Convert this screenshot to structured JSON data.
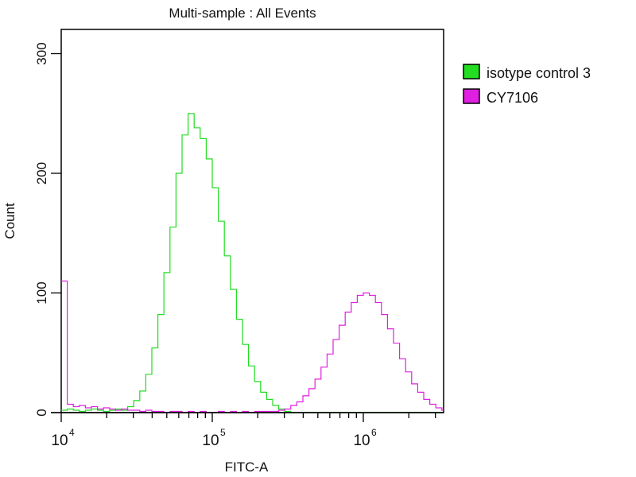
{
  "chart_data": {
    "type": "line",
    "title": "Multi-sample : All Events",
    "xlabel": "FITC-A",
    "ylabel": "Count",
    "x_scale": "log10",
    "xlim": [
      10000,
      3400000
    ],
    "ylim": [
      0,
      320
    ],
    "grid": false,
    "legend_position": "right",
    "x_ticks": [
      {
        "value": 10000,
        "base": "10",
        "exp": "4"
      },
      {
        "value": 100000,
        "base": "10",
        "exp": "5"
      },
      {
        "value": 1000000,
        "base": "10",
        "exp": "6"
      }
    ],
    "y_ticks": [
      {
        "value": 0,
        "label": "0"
      },
      {
        "value": 100,
        "label": "100"
      },
      {
        "value": 200,
        "label": "200"
      },
      {
        "value": 300,
        "label": "300"
      }
    ],
    "bins_log10_start": 4.0,
    "bins_log10_width": 0.04,
    "series": [
      {
        "name": "isotype control 3",
        "color": "#22dd22",
        "values": [
          2,
          3,
          2,
          1,
          2,
          3,
          2,
          1,
          2,
          3,
          2,
          5,
          10,
          18,
          32,
          54,
          82,
          117,
          155,
          200,
          232,
          250,
          238,
          229,
          212,
          188,
          160,
          131,
          103,
          78,
          57,
          39,
          26,
          17,
          11,
          6,
          3,
          1,
          0,
          0,
          0,
          0,
          0,
          0,
          0,
          0,
          0,
          0,
          0,
          0,
          0,
          0,
          0,
          0,
          0,
          0,
          0,
          0,
          0,
          0,
          0,
          0,
          0,
          0
        ]
      },
      {
        "name": "CY7106",
        "color": "#e020e0",
        "values": [
          110,
          7,
          5,
          6,
          4,
          5,
          3,
          4,
          3,
          2,
          3,
          2,
          2,
          1,
          2,
          1,
          1,
          0,
          1,
          1,
          0,
          1,
          0,
          1,
          0,
          0,
          1,
          0,
          1,
          0,
          1,
          0,
          1,
          1,
          1,
          1,
          2,
          3,
          6,
          9,
          14,
          20,
          28,
          38,
          49,
          61,
          73,
          84,
          92,
          98,
          100,
          98,
          92,
          82,
          70,
          58,
          45,
          34,
          24,
          17,
          11,
          7,
          4,
          2
        ]
      }
    ]
  }
}
